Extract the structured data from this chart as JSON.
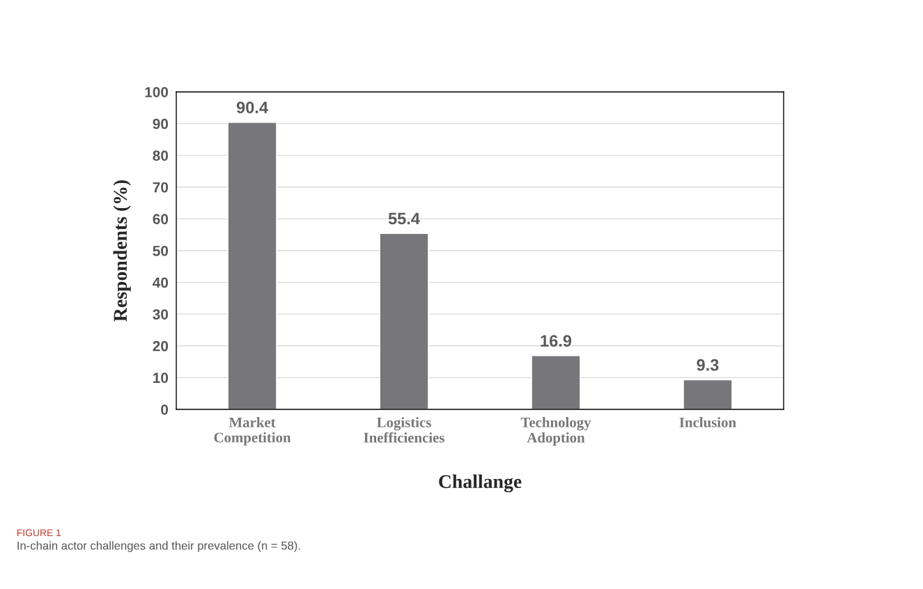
{
  "chart_data": {
    "type": "bar",
    "xlabel": "Challange",
    "ylabel": "Respondents (%)",
    "categories": [
      "Market\nCompetition",
      "Logistics\nInefficiencies",
      "Technology\nAdoption",
      "Inclusion"
    ],
    "values": [
      90.4,
      55.4,
      16.9,
      9.3
    ],
    "color": "#77777b",
    "ylim": [
      0,
      100
    ],
    "yticks": [
      0,
      10,
      20,
      30,
      40,
      50,
      60,
      70,
      80,
      90,
      100
    ],
    "grid": "y",
    "data_labels": true,
    "annotations": [
      "FIGURE 1",
      "In-chain actor challenges and their prevalence (n = 58)."
    ]
  }
}
